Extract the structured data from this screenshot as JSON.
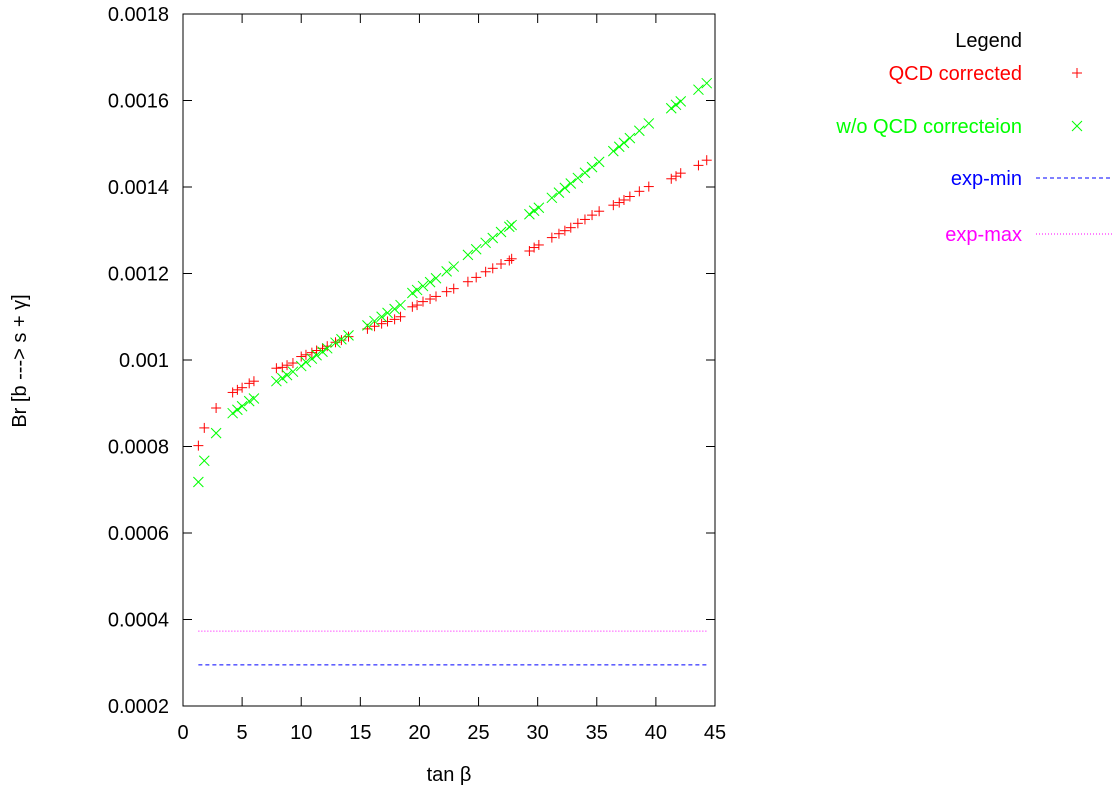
{
  "chart_data": {
    "type": "scatter",
    "xlabel": "tan β",
    "ylabel": "Br [b ---> s + γ]",
    "xlim": [
      0,
      45
    ],
    "ylim": [
      0.0002,
      0.0018
    ],
    "x_ticks": [
      "0",
      "5",
      "10",
      "15",
      "20",
      "25",
      "30",
      "35",
      "40",
      "45"
    ],
    "y_ticks": [
      "0.0002",
      "0.0004",
      "0.0006",
      "0.0008",
      "0.001",
      "0.0012",
      "0.0014",
      "0.0016",
      "0.0018"
    ],
    "grid": false,
    "legend": {
      "title": "Legend",
      "position": "outside-right"
    },
    "series": [
      {
        "name": "QCD corrected",
        "marker": "plus",
        "color": "#ff0000",
        "x": [
          1.3,
          1.8,
          2.8,
          4.2,
          4.6,
          5.0,
          5.6,
          6.0,
          7.9,
          8.4,
          8.8,
          9.3,
          10.0,
          10.4,
          10.9,
          11.3,
          11.8,
          12.2,
          12.9,
          13.4,
          14.0,
          15.6,
          16.2,
          16.8,
          17.3,
          17.9,
          18.4,
          19.4,
          19.8,
          20.3,
          20.9,
          21.4,
          22.3,
          22.9,
          24.1,
          24.8,
          25.6,
          26.2,
          26.9,
          27.6,
          27.8,
          29.3,
          29.7,
          30.1,
          31.2,
          31.8,
          32.3,
          32.8,
          33.4,
          34.0,
          34.6,
          35.2,
          36.4,
          36.9,
          37.3,
          37.8,
          38.6,
          39.4,
          41.3,
          41.7,
          42.1,
          43.6,
          44.3
        ],
        "y": [
          0.000802,
          0.000843,
          0.000889,
          0.000925,
          0.000931,
          0.000936,
          0.000946,
          0.000951,
          0.000981,
          0.000983,
          0.000988,
          0.000993,
          0.001008,
          0.001012,
          0.001017,
          0.001022,
          0.001027,
          0.001032,
          0.001041,
          0.001046,
          0.001054,
          0.001072,
          0.001078,
          0.001084,
          0.001089,
          0.001094,
          0.0011,
          0.001123,
          0.001127,
          0.001135,
          0.001141,
          0.001147,
          0.001158,
          0.001165,
          0.001181,
          0.001191,
          0.001204,
          0.001212,
          0.001222,
          0.00123,
          0.001234,
          0.001252,
          0.00126,
          0.001266,
          0.001283,
          0.001292,
          0.001299,
          0.001306,
          0.001316,
          0.001325,
          0.001335,
          0.001344,
          0.001358,
          0.001364,
          0.00137,
          0.001378,
          0.00139,
          0.001401,
          0.001419,
          0.001425,
          0.001432,
          0.00145,
          0.001462
        ]
      },
      {
        "name": "w/o QCD correcteion",
        "marker": "cross",
        "color": "#00ff00",
        "x": [
          1.3,
          1.8,
          2.8,
          4.2,
          4.6,
          5.0,
          5.6,
          6.0,
          7.9,
          8.4,
          8.8,
          9.3,
          10.0,
          10.4,
          10.9,
          11.3,
          11.8,
          12.2,
          12.9,
          13.4,
          14.0,
          15.6,
          16.2,
          16.8,
          17.3,
          17.9,
          18.4,
          19.4,
          19.8,
          20.3,
          20.9,
          21.4,
          22.3,
          22.9,
          24.1,
          24.8,
          25.6,
          26.2,
          26.9,
          27.6,
          27.8,
          29.3,
          29.7,
          30.1,
          31.2,
          31.8,
          32.3,
          32.8,
          33.4,
          34.0,
          34.6,
          35.2,
          36.4,
          36.9,
          37.3,
          37.8,
          38.6,
          39.4,
          41.3,
          41.7,
          42.1,
          43.6,
          44.3
        ],
        "y": [
          0.000718,
          0.000767,
          0.000831,
          0.000877,
          0.000885,
          0.000893,
          0.000905,
          0.000911,
          0.000951,
          0.000958,
          0.000965,
          0.000973,
          0.000986,
          0.000995,
          0.001003,
          0.001011,
          0.001019,
          0.001027,
          0.00104,
          0.001048,
          0.001057,
          0.00108,
          0.00109,
          0.0011,
          0.001109,
          0.001118,
          0.001127,
          0.001155,
          0.001162,
          0.001171,
          0.00118,
          0.001189,
          0.001205,
          0.001216,
          0.001243,
          0.001256,
          0.001271,
          0.001282,
          0.001296,
          0.001308,
          0.001312,
          0.001337,
          0.001345,
          0.001352,
          0.001375,
          0.001387,
          0.001398,
          0.001408,
          0.001421,
          0.001433,
          0.001446,
          0.001458,
          0.001483,
          0.001493,
          0.001502,
          0.001513,
          0.00153,
          0.001547,
          0.001582,
          0.00159,
          0.001598,
          0.001625,
          0.00164
        ]
      },
      {
        "name": "exp-min",
        "marker": "dashed-line",
        "color": "#0000ff",
        "x": [
          1.3,
          44.3
        ],
        "y": [
          0.000295,
          0.000295
        ]
      },
      {
        "name": "exp-max",
        "marker": "dotted-line",
        "color": "#ff00ff",
        "x": [
          1.3,
          44.3
        ],
        "y": [
          0.000373,
          0.000373
        ]
      }
    ]
  }
}
